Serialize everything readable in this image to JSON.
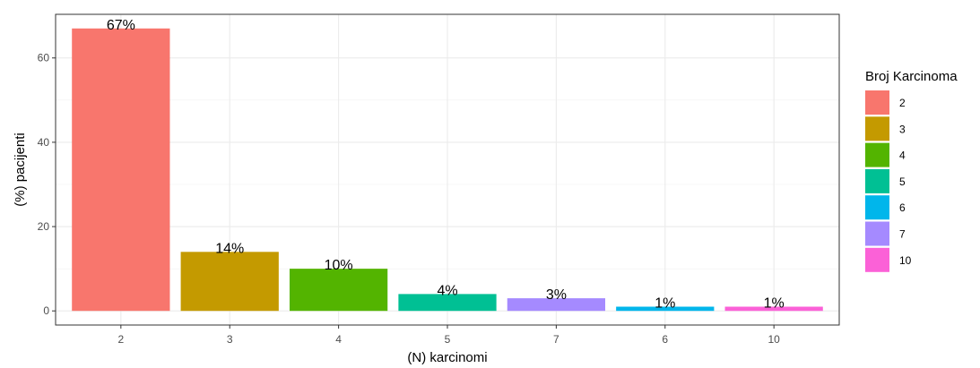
{
  "chart_data": {
    "type": "bar",
    "categories": [
      "2",
      "3",
      "4",
      "5",
      "7",
      "6",
      "10"
    ],
    "values": [
      67,
      14,
      10,
      4,
      3,
      1,
      1
    ],
    "labels": [
      "67%",
      "14%",
      "10%",
      "4%",
      "3%",
      "1%",
      "1%"
    ],
    "colors": [
      "#F8766D",
      "#C49A00",
      "#53B400",
      "#00C094",
      "#A58AFF",
      "#00B6EB",
      "#FB61D7"
    ],
    "xlabel": "(N) karcinomi",
    "ylabel": "(%) pacijenti",
    "ylim": [
      -3.35,
      70.35
    ],
    "yticks": [
      0,
      20,
      40,
      60
    ],
    "grid": true,
    "legend": {
      "title": "Broj Karcinoma",
      "position": "right",
      "items": [
        {
          "label": "2",
          "color": "#F8766D"
        },
        {
          "label": "3",
          "color": "#C49A00"
        },
        {
          "label": "4",
          "color": "#53B400"
        },
        {
          "label": "5",
          "color": "#00C094"
        },
        {
          "label": "6",
          "color": "#00B6EB"
        },
        {
          "label": "7",
          "color": "#A58AFF"
        },
        {
          "label": "10",
          "color": "#FB61D7"
        }
      ]
    }
  }
}
